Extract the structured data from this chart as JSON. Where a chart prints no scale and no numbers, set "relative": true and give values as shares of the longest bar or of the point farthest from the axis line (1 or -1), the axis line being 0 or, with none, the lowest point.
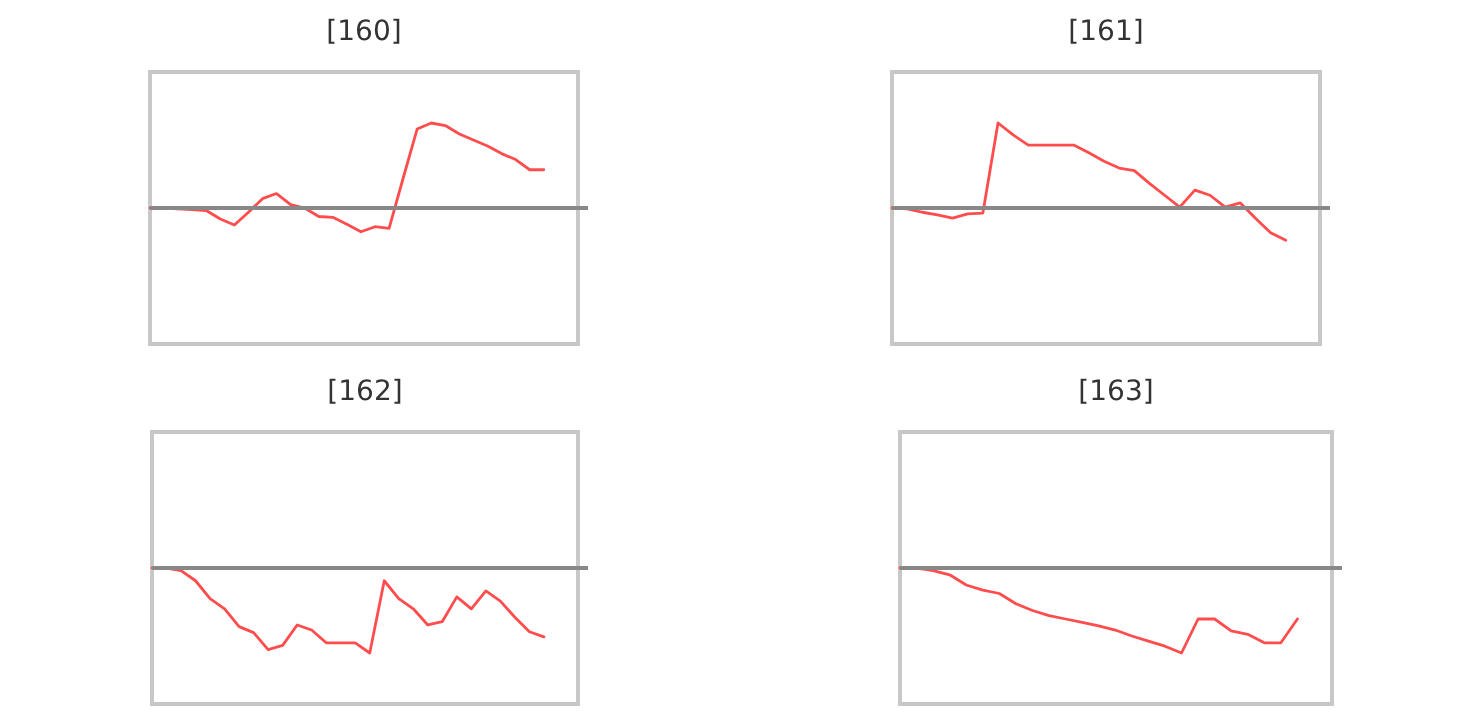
{
  "chart_data": [
    {
      "type": "line",
      "title": "[160]",
      "relative": true,
      "categories": [
        null,
        null,
        null,
        null,
        null,
        null,
        null,
        null,
        null,
        null,
        null,
        null,
        null,
        null,
        null,
        null,
        null,
        null,
        null,
        null,
        null,
        null,
        null,
        null,
        null,
        null,
        null,
        null,
        null
      ],
      "series": [
        {
          "color": "#ff4d4d",
          "values": [
            0,
            0,
            -0.01,
            -0.02,
            -0.03,
            -0.13,
            -0.2,
            -0.05,
            0.11,
            0.17,
            0.04,
            0,
            -0.1,
            -0.11,
            -0.19,
            -0.28,
            -0.22,
            -0.24,
            0.35,
            0.93,
            1,
            0.97,
            0.87,
            0.8,
            0.73,
            0.64,
            0.57,
            0.45,
            0.45
          ]
        }
      ]
    },
    {
      "type": "line",
      "title": "[161]",
      "relative": true,
      "categories": [
        null,
        null,
        null,
        null,
        null,
        null,
        null,
        null,
        null,
        null,
        null,
        null,
        null,
        null,
        null,
        null,
        null,
        null,
        null,
        null,
        null,
        null,
        null,
        null,
        null,
        null,
        null
      ],
      "series": [
        {
          "color": "#ff4d4d",
          "values": [
            0,
            -0.01,
            -0.05,
            -0.08,
            -0.12,
            -0.07,
            -0.06,
            1,
            0.86,
            0.74,
            0.74,
            0.74,
            0.74,
            0.65,
            0.55,
            0.47,
            0.44,
            0.29,
            0.15,
            0.01,
            0.21,
            0.15,
            0.01,
            0.06,
            -0.12,
            -0.29,
            -0.38
          ]
        }
      ]
    },
    {
      "type": "line",
      "title": "[162]",
      "relative": true,
      "categories": [
        null,
        null,
        null,
        null,
        null,
        null,
        null,
        null,
        null,
        null,
        null,
        null,
        null,
        null,
        null,
        null,
        null,
        null,
        null,
        null,
        null,
        null,
        null,
        null,
        null,
        null,
        null,
        null
      ],
      "series": [
        {
          "color": "#ff4d4d",
          "values": [
            0,
            0,
            -0.03,
            -0.15,
            -0.36,
            -0.48,
            -0.69,
            -0.76,
            -0.96,
            -0.91,
            -0.67,
            -0.73,
            -0.88,
            -0.88,
            -0.88,
            -1,
            -0.15,
            -0.36,
            -0.48,
            -0.67,
            -0.63,
            -0.34,
            -0.48,
            -0.27,
            -0.39,
            -0.58,
            -0.75,
            -0.81
          ]
        }
      ]
    },
    {
      "type": "line",
      "title": "[163]",
      "relative": true,
      "categories": [
        null,
        null,
        null,
        null,
        null,
        null,
        null,
        null,
        null,
        null,
        null,
        null,
        null,
        null,
        null,
        null,
        null,
        null,
        null,
        null,
        null,
        null,
        null,
        null,
        null
      ],
      "series": [
        {
          "color": "#ff4d4d",
          "values": [
            0,
            0,
            -0.03,
            -0.08,
            -0.2,
            -0.26,
            -0.3,
            -0.42,
            -0.5,
            -0.56,
            -0.6,
            -0.64,
            -0.68,
            -0.73,
            -0.8,
            -0.86,
            -0.92,
            -1,
            -0.6,
            -0.6,
            -0.74,
            -0.78,
            -0.88,
            -0.88,
            -0.6
          ]
        }
      ]
    }
  ]
}
